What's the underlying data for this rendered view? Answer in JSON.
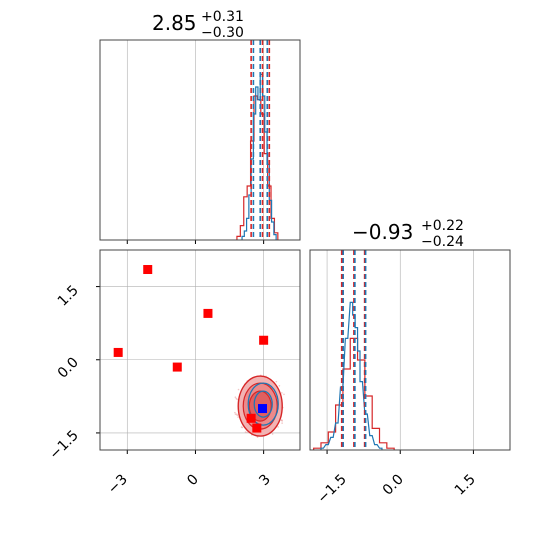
{
  "chart_data": {
    "type": "corner",
    "colors": {
      "blue": "#1f77b4",
      "red": "#d62728",
      "marker_red": "#ff0000",
      "marker_blue": "#0000ff",
      "grid": "#b0b0b0"
    },
    "parameters": [
      {
        "title": {
          "main": "2.85",
          "plus": "+0.31",
          "minus": "−0.30"
        },
        "axis_range": [
          -4.2,
          4.6
        ],
        "ticks": [
          -3,
          0,
          3
        ],
        "tick_labels": [
          "−3",
          "0",
          "3"
        ],
        "quantiles_blue": [
          2.55,
          2.85,
          3.16
        ],
        "quantiles_red": [
          2.45,
          2.95,
          3.25
        ]
      },
      {
        "title": {
          "main": "−0.93",
          "plus": "+0.22",
          "minus": "−0.24"
        },
        "axis_range": [
          -1.85,
          2.25
        ],
        "ticks": [
          -1.5,
          0.0,
          1.5
        ],
        "tick_labels": [
          "−1.5",
          "0.0",
          "1.5"
        ],
        "quantiles_blue": [
          -1.17,
          -0.93,
          -0.71
        ],
        "quantiles_red": [
          -1.2,
          -0.95,
          -0.73
        ]
      }
    ],
    "joint": {
      "y_tick_labels": [
        "1.5",
        "0.0",
        "−1.5"
      ],
      "red_markers": [
        {
          "x": -3.4,
          "y": 0.15
        },
        {
          "x": -2.1,
          "y": 1.85
        },
        {
          "x": -0.8,
          "y": -0.15
        },
        {
          "x": 0.55,
          "y": 0.95
        },
        {
          "x": 3.0,
          "y": 0.4
        },
        {
          "x": 2.45,
          "y": -1.2
        },
        {
          "x": 2.7,
          "y": -1.4
        }
      ],
      "blue_marker": {
        "x": 2.95,
        "y": -1.0
      },
      "contour_center": {
        "x": 2.85,
        "y": -0.95
      }
    },
    "hist1_blue": [
      {
        "x": 2.1,
        "h": 0.02
      },
      {
        "x": 2.2,
        "h": 0.05
      },
      {
        "x": 2.3,
        "h": 0.12
      },
      {
        "x": 2.4,
        "h": 0.25
      },
      {
        "x": 2.5,
        "h": 0.45
      },
      {
        "x": 2.6,
        "h": 0.7
      },
      {
        "x": 2.7,
        "h": 0.85
      },
      {
        "x": 2.8,
        "h": 0.78
      },
      {
        "x": 2.9,
        "h": 0.92
      },
      {
        "x": 3.0,
        "h": 0.8
      },
      {
        "x": 3.1,
        "h": 0.6
      },
      {
        "x": 3.2,
        "h": 0.42
      },
      {
        "x": 3.3,
        "h": 0.22
      },
      {
        "x": 3.4,
        "h": 0.1
      },
      {
        "x": 3.5,
        "h": 0.03
      }
    ],
    "hist1_red": [
      {
        "x": 1.9,
        "h": 0.02
      },
      {
        "x": 2.05,
        "h": 0.08
      },
      {
        "x": 2.2,
        "h": 0.24
      },
      {
        "x": 2.35,
        "h": 0.3
      },
      {
        "x": 2.5,
        "h": 0.55
      },
      {
        "x": 2.65,
        "h": 0.8
      },
      {
        "x": 2.8,
        "h": 0.78
      },
      {
        "x": 2.95,
        "h": 0.7
      },
      {
        "x": 3.1,
        "h": 0.48
      },
      {
        "x": 3.25,
        "h": 0.3
      },
      {
        "x": 3.4,
        "h": 0.12
      },
      {
        "x": 3.55,
        "h": 0.04
      }
    ],
    "hist2_blue": [
      {
        "x": -1.6,
        "h": 0.01
      },
      {
        "x": -1.5,
        "h": 0.03
      },
      {
        "x": -1.4,
        "h": 0.07
      },
      {
        "x": -1.3,
        "h": 0.15
      },
      {
        "x": -1.2,
        "h": 0.35
      },
      {
        "x": -1.1,
        "h": 0.62
      },
      {
        "x": -1.0,
        "h": 0.82
      },
      {
        "x": -0.95,
        "h": 0.75
      },
      {
        "x": -0.9,
        "h": 0.68
      },
      {
        "x": -0.85,
        "h": 0.55
      },
      {
        "x": -0.8,
        "h": 0.38
      },
      {
        "x": -0.7,
        "h": 0.2
      },
      {
        "x": -0.6,
        "h": 0.08
      },
      {
        "x": -0.5,
        "h": 0.03
      },
      {
        "x": -0.4,
        "h": 0.01
      }
    ],
    "hist2_red": [
      {
        "x": -1.7,
        "h": 0.01
      },
      {
        "x": -1.55,
        "h": 0.04
      },
      {
        "x": -1.4,
        "h": 0.1
      },
      {
        "x": -1.25,
        "h": 0.25
      },
      {
        "x": -1.1,
        "h": 0.45
      },
      {
        "x": -0.95,
        "h": 0.62
      },
      {
        "x": -0.8,
        "h": 0.5
      },
      {
        "x": -0.65,
        "h": 0.3
      },
      {
        "x": -0.5,
        "h": 0.12
      },
      {
        "x": -0.35,
        "h": 0.04
      },
      {
        "x": -0.2,
        "h": 0.01
      }
    ]
  }
}
